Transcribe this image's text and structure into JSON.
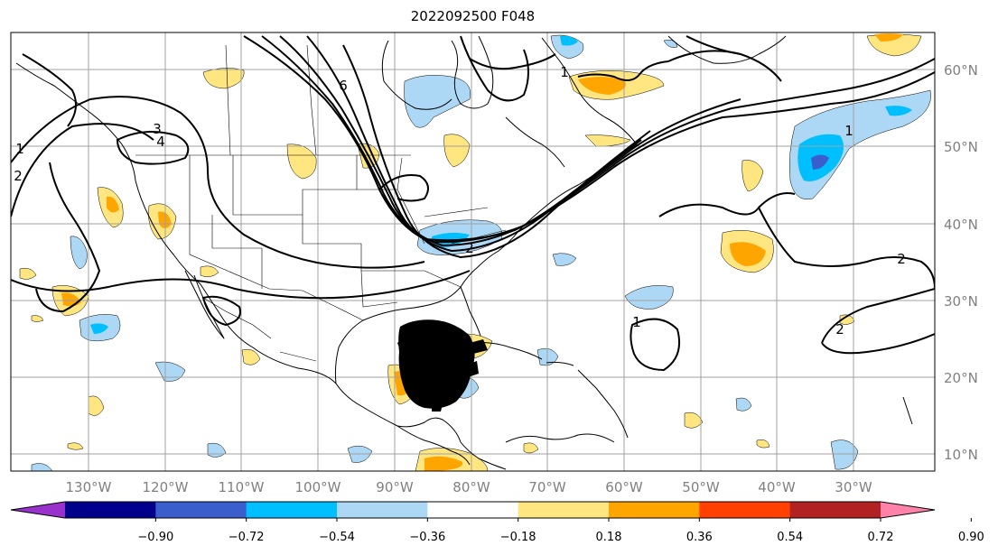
{
  "title": "2022092500 F048",
  "longitude_labels": [
    "130°W",
    "120°W",
    "110°W",
    "100°W",
    "90°W",
    "80°W",
    "70°W",
    "60°W",
    "50°W",
    "40°W",
    "30°W"
  ],
  "latitude_labels": [
    "60°N",
    "50°N",
    "40°N",
    "30°N",
    "20°N",
    "10°N"
  ],
  "colorbar": {
    "tick_labels": [
      "−0.90",
      "−0.72",
      "−0.54",
      "−0.36",
      "−0.18",
      "0.18",
      "0.36",
      "0.54",
      "0.72",
      "0.90"
    ],
    "colors": [
      "#9932cc",
      "#00008b",
      "#3a5fcd",
      "#00bfff",
      "#add8f5",
      "#ffffff",
      "#ffe680",
      "#ffa500",
      "#ff4000",
      "#b22222",
      "#ff82ab"
    ]
  },
  "contour_labels": [
    "3",
    "4",
    "6",
    "1",
    "2",
    "1",
    "1",
    "2",
    "2",
    "1",
    "2"
  ],
  "colors": {
    "grid": "#a0a0a0",
    "coast": "#000000",
    "contour": "#000000",
    "axis_text": "#808080"
  }
}
